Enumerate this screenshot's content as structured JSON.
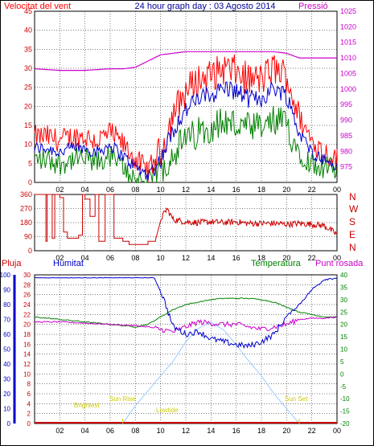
{
  "header": {
    "wind_label": "Velocitat del vent",
    "title": "24 hour graph day : 03 Agosto 2014",
    "pressure_label": "Pressió"
  },
  "panel2": {
    "direction_labels": [
      "N",
      "W",
      "S",
      "E",
      "N"
    ]
  },
  "panel3": {
    "rain_label": "Pluja",
    "humidity_label": "Humitat",
    "temp_label": "Temperatura",
    "dew_label": "Punt rosada",
    "annotations": {
      "brightest": "Brightest",
      "sunrise": "Sun Rise",
      "lowtide": "Lowtide",
      "sunset": "Sun Set"
    }
  },
  "colors": {
    "wind": "#ff0000",
    "wind_avg": "#0000cc",
    "wind_green": "#008000",
    "pressure": "#cc00cc",
    "humidity": "#0000cc",
    "temperature": "#008000",
    "dewpoint": "#cc00cc",
    "solar": "#99ccff",
    "rain": "#cc0000",
    "annotation": "#cccc00"
  },
  "chart_data": [
    {
      "type": "line",
      "x_ticks": [
        "02",
        "04",
        "06",
        "08",
        "10",
        "12",
        "14",
        "16",
        "18",
        "20",
        "22",
        "00"
      ],
      "ylim_left": [
        0,
        45
      ],
      "yticks_left": [
        "0",
        "5",
        "10",
        "15",
        "20",
        "25",
        "30",
        "35",
        "40",
        "45"
      ],
      "ylim_right": [
        970,
        1025
      ],
      "yticks_right": [
        "975",
        "980",
        "985",
        "990",
        "995",
        "1000",
        "1005",
        "1010",
        "1015",
        "1020",
        "1025"
      ],
      "series": [
        {
          "role": "gust",
          "hours": [
            0,
            1,
            2,
            3,
            4,
            5,
            6,
            7,
            8,
            9,
            10,
            11,
            12,
            13,
            14,
            15,
            16,
            17,
            18,
            19,
            20,
            21,
            22,
            23,
            24
          ],
          "values": [
            12,
            12,
            11,
            12,
            12,
            11,
            13,
            10,
            6,
            3,
            8,
            18,
            24,
            27,
            28,
            30,
            29,
            27,
            27,
            30,
            28,
            17,
            11,
            8,
            6
          ]
        },
        {
          "role": "average",
          "hours": [
            0,
            1,
            2,
            3,
            4,
            5,
            6,
            7,
            8,
            9,
            10,
            11,
            12,
            13,
            14,
            15,
            16,
            17,
            18,
            19,
            20,
            21,
            22,
            23,
            24
          ],
          "values": [
            9,
            9,
            8,
            9,
            9,
            8,
            10,
            7,
            4,
            2,
            6,
            14,
            19,
            22,
            23,
            25,
            24,
            22,
            22,
            25,
            23,
            13,
            8,
            6,
            4
          ]
        },
        {
          "role": "minimum",
          "hours": [
            0,
            1,
            2,
            3,
            4,
            5,
            6,
            7,
            8,
            9,
            10,
            11,
            12,
            13,
            14,
            15,
            16,
            17,
            18,
            19,
            20,
            21,
            22,
            23,
            24
          ],
          "values": [
            6,
            6,
            5,
            6,
            6,
            5,
            7,
            4,
            1,
            0,
            3,
            8,
            11,
            13,
            15,
            16,
            15,
            14,
            14,
            16,
            15,
            8,
            5,
            4,
            3
          ]
        },
        {
          "role": "pressure",
          "hours": [
            0,
            2,
            4,
            6,
            7,
            8,
            9,
            10,
            11,
            12,
            13,
            14,
            15,
            16,
            17,
            18,
            19,
            20,
            21,
            22,
            23,
            24
          ],
          "values": [
            1006.5,
            1006,
            1006,
            1006.5,
            1006.5,
            1007,
            1009,
            1011,
            1011.5,
            1012,
            1012,
            1012,
            1012,
            1012,
            1012,
            1012,
            1012,
            1011.5,
            1010,
            1010,
            1010,
            1010
          ]
        }
      ]
    },
    {
      "type": "line",
      "x_ticks": [
        "02",
        "04",
        "06",
        "08",
        "10",
        "12",
        "14",
        "16",
        "18",
        "20",
        "22",
        "00"
      ],
      "ylim": [
        0,
        360
      ],
      "yticks": [
        "0",
        "90",
        "180",
        "270",
        "360"
      ],
      "series": [
        {
          "role": "direction",
          "hours": [
            0,
            0.6,
            0.9,
            1.0,
            1.4,
            1.6,
            2.0,
            2.3,
            2.6,
            3.2,
            3.5,
            3.8,
            4.0,
            4.4,
            4.8,
            5.1,
            5.6,
            6.0,
            6.3,
            7.0,
            7.5,
            8.0,
            8.6,
            9.0,
            9.6,
            10.0,
            10.5,
            11.0,
            12.0,
            13.0,
            14.0,
            15.0,
            16.0,
            17.0,
            18.0,
            19.0,
            20.0,
            21.0,
            22.0,
            23.0,
            23.9,
            24.0
          ],
          "values": [
            360,
            360,
            60,
            360,
            80,
            360,
            340,
            120,
            80,
            80,
            100,
            360,
            330,
            220,
            360,
            60,
            360,
            360,
            80,
            60,
            40,
            40,
            40,
            60,
            70,
            200,
            270,
            200,
            185,
            180,
            185,
            180,
            185,
            175,
            175,
            175,
            170,
            175,
            170,
            160,
            110,
            110
          ]
        }
      ]
    },
    {
      "type": "line",
      "x_ticks": [
        "02",
        "04",
        "06",
        "08",
        "10",
        "12",
        "14",
        "16",
        "18",
        "20",
        "22",
        "00"
      ],
      "ylim_humidity": [
        0,
        100
      ],
      "yticks_humidity": [
        "0",
        "10",
        "20",
        "30",
        "40",
        "50",
        "60",
        "70",
        "80",
        "90",
        "100"
      ],
      "ylim_rain": [
        0,
        30
      ],
      "yticks_rain": [
        "0",
        "2",
        "4",
        "6",
        "8",
        "10",
        "12",
        "14",
        "16",
        "18",
        "20",
        "22",
        "24",
        "26",
        "28",
        "30"
      ],
      "ylim_temp": [
        -20,
        40
      ],
      "yticks_temp": [
        "-20",
        "-15",
        "-10",
        "-5",
        "0",
        "5",
        "10",
        "15",
        "20",
        "25",
        "30",
        "35",
        "40"
      ],
      "series": [
        {
          "role": "humidity",
          "hours": [
            0,
            2,
            4,
            6,
            8,
            9.5,
            10.2,
            11,
            12,
            13,
            14,
            15,
            16,
            17,
            18,
            19,
            20,
            21,
            22,
            23,
            24
          ],
          "values": [
            98,
            98,
            98,
            98,
            98,
            98,
            85,
            65,
            60,
            62,
            57,
            55,
            53,
            52,
            55,
            60,
            72,
            80,
            90,
            97,
            98
          ]
        },
        {
          "role": "temperature",
          "hours": [
            0,
            1,
            2,
            3,
            4,
            5,
            6,
            7,
            8,
            9,
            10,
            11,
            12,
            13,
            14,
            15,
            16,
            17,
            18,
            19,
            20,
            21,
            22,
            23,
            24
          ],
          "values": [
            23,
            22.5,
            22,
            21.5,
            21,
            20.5,
            20,
            19.5,
            19,
            20,
            23,
            26,
            28,
            29,
            30,
            30.5,
            30.5,
            30.5,
            30,
            29,
            27,
            25,
            24,
            23,
            23
          ]
        },
        {
          "role": "dewpoint",
          "hours": [
            0,
            2,
            4,
            6,
            8,
            9,
            10,
            11,
            12,
            13,
            14,
            15,
            16,
            17,
            18,
            19,
            20,
            21,
            22,
            23,
            24
          ],
          "values": [
            21,
            21,
            20.5,
            20,
            19.5,
            19,
            18,
            17,
            19,
            21,
            20.5,
            20,
            20,
            19,
            18,
            19,
            20,
            22,
            22.5,
            22.5,
            23
          ]
        },
        {
          "role": "solar",
          "hours": [
            7,
            8,
            9,
            10,
            11,
            12,
            13,
            14,
            15,
            16,
            17,
            18,
            19,
            20,
            21
          ],
          "values": [
            0,
            12,
            22,
            32,
            42,
            55,
            64,
            68,
            63,
            53,
            42,
            32,
            20,
            10,
            0
          ]
        },
        {
          "role": "rain",
          "hours": [
            0,
            24
          ],
          "values": [
            0,
            0
          ]
        }
      ]
    }
  ]
}
